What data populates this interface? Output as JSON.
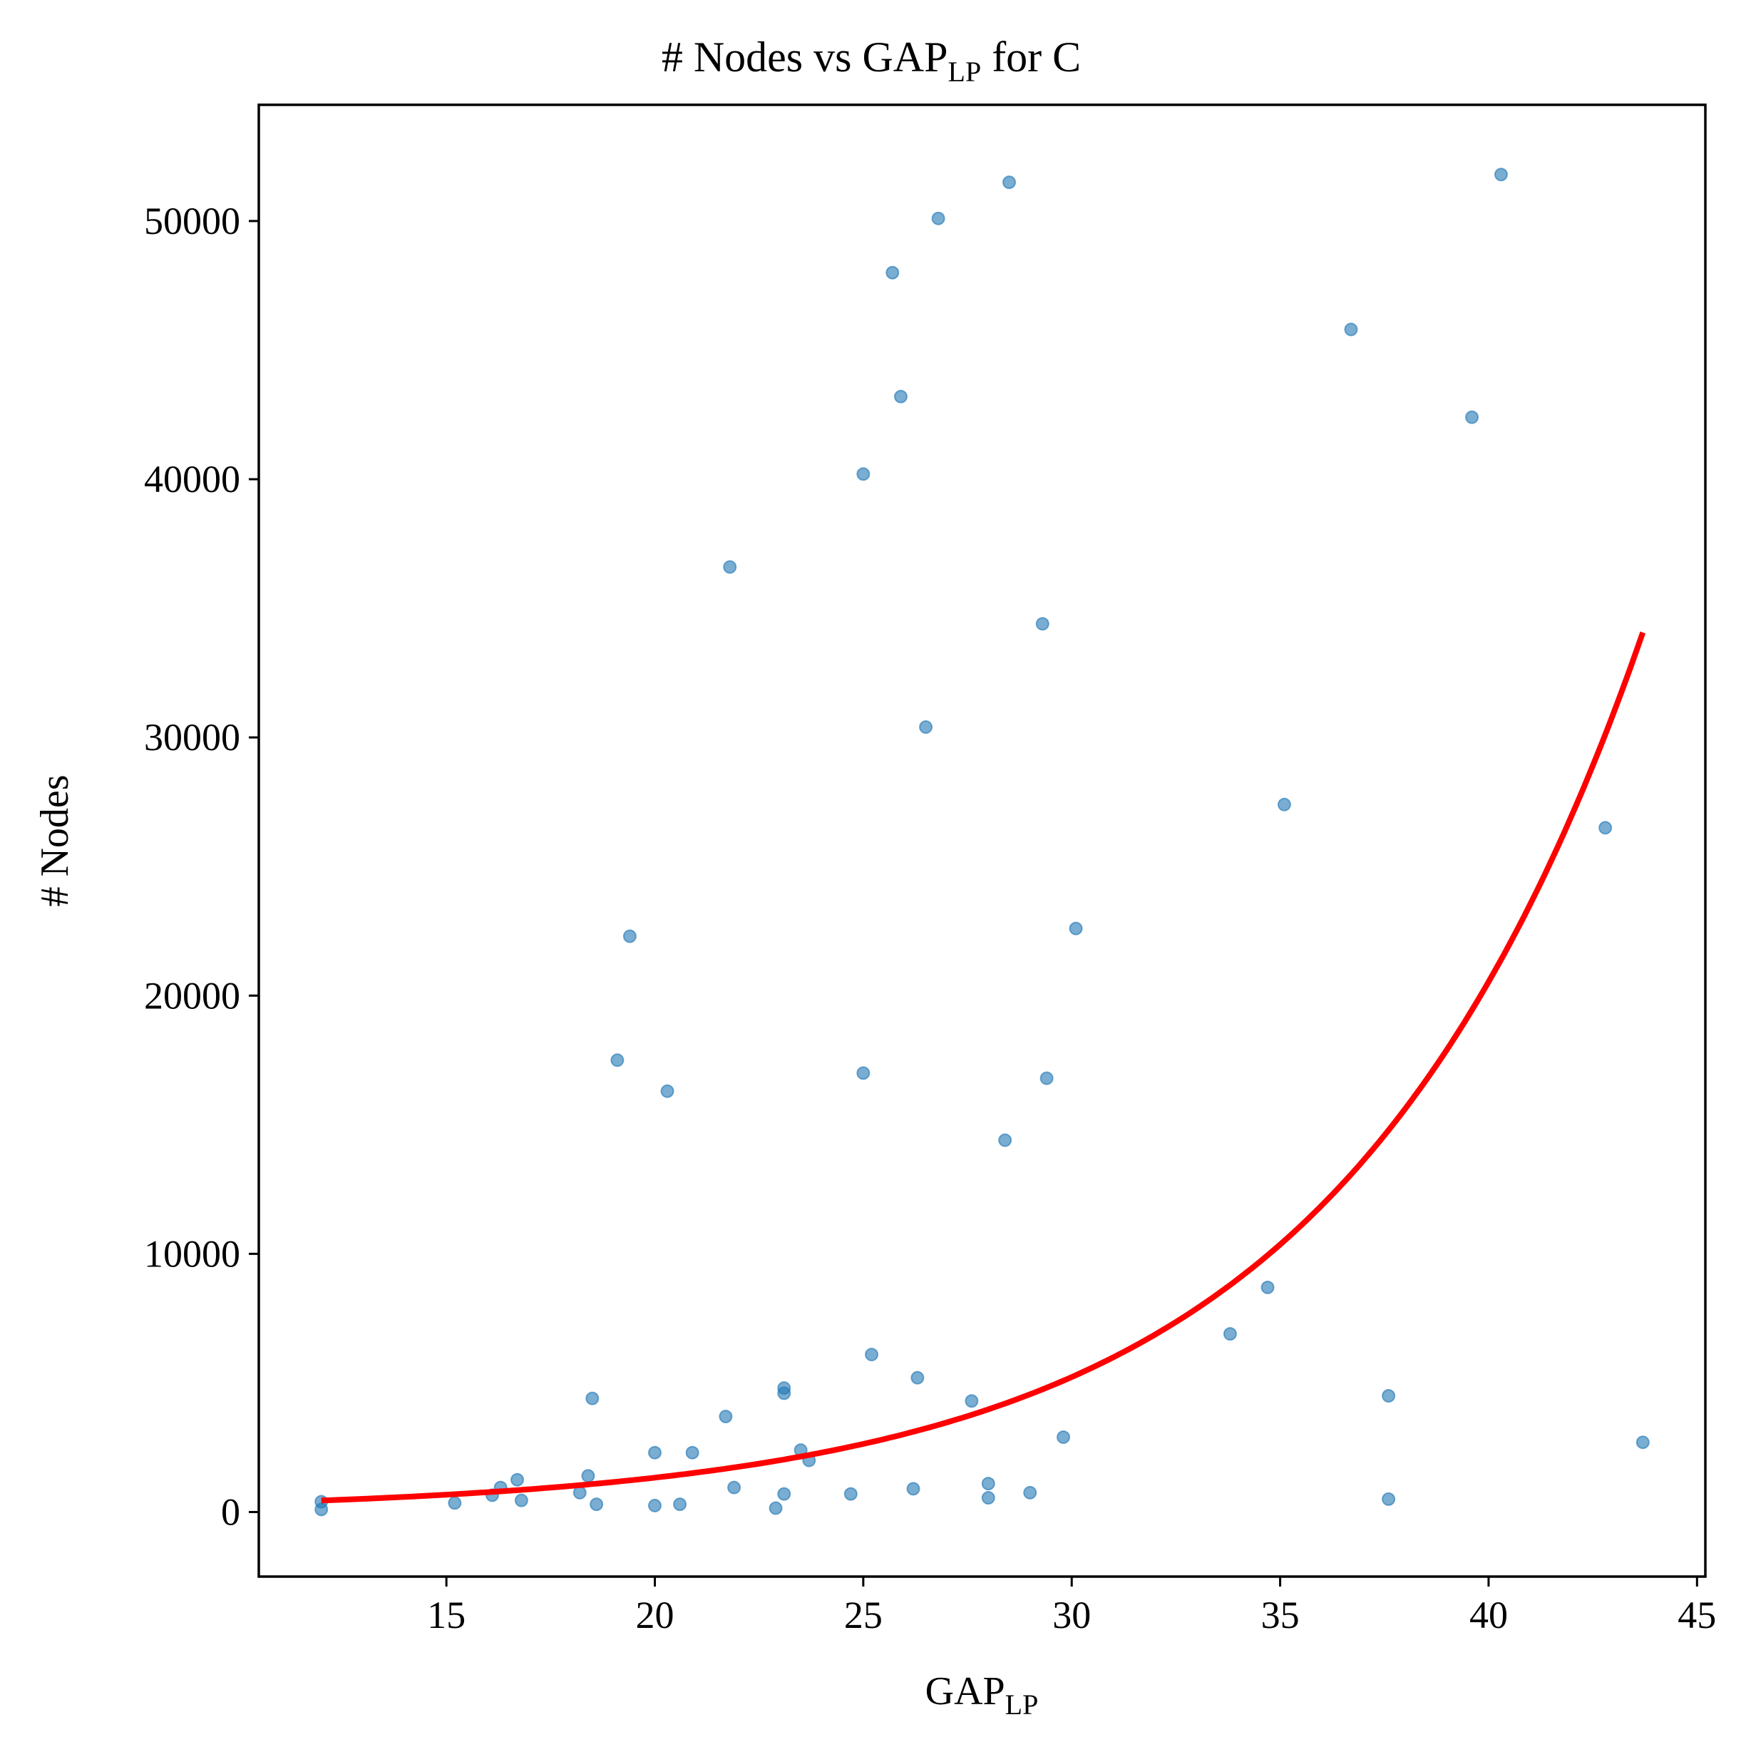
{
  "chart_data": {
    "type": "scatter",
    "title": {
      "main": "# Nodes vs GAP",
      "subscript": "LP",
      "suffix": " for C"
    },
    "xlabel": {
      "main": "GAP",
      "subscript": "LP"
    },
    "ylabel": "# Nodes",
    "xlim": [
      10.5,
      45.2
    ],
    "ylim": [
      -2500,
      54500
    ],
    "xticks": [
      15,
      20,
      25,
      30,
      35,
      40,
      45
    ],
    "yticks": [
      0,
      10000,
      20000,
      30000,
      40000,
      50000
    ],
    "grid": false,
    "legend": "none",
    "series": [
      {
        "type": "scatter",
        "color": "#1f77b4",
        "points": [
          [
            12.0,
            400
          ],
          [
            12.0,
            100
          ],
          [
            15.2,
            350
          ],
          [
            16.1,
            650
          ],
          [
            16.3,
            950
          ],
          [
            16.7,
            1250
          ],
          [
            16.8,
            450
          ],
          [
            18.2,
            750
          ],
          [
            18.4,
            1400
          ],
          [
            18.5,
            4400
          ],
          [
            18.6,
            300
          ],
          [
            19.1,
            17500
          ],
          [
            19.4,
            22300
          ],
          [
            20.0,
            2300
          ],
          [
            20.0,
            250
          ],
          [
            20.3,
            16300
          ],
          [
            20.6,
            300
          ],
          [
            20.9,
            2300
          ],
          [
            21.7,
            3700
          ],
          [
            21.8,
            36600
          ],
          [
            21.9,
            950
          ],
          [
            22.9,
            150
          ],
          [
            23.1,
            4600
          ],
          [
            23.1,
            4800
          ],
          [
            23.1,
            700
          ],
          [
            23.5,
            2400
          ],
          [
            23.7,
            2000
          ],
          [
            24.7,
            700
          ],
          [
            25.0,
            40200
          ],
          [
            25.0,
            17000
          ],
          [
            25.2,
            6100
          ],
          [
            25.7,
            48000
          ],
          [
            25.9,
            43200
          ],
          [
            26.2,
            900
          ],
          [
            26.3,
            5200
          ],
          [
            26.5,
            30400
          ],
          [
            26.8,
            50100
          ],
          [
            27.6,
            4300
          ],
          [
            28.0,
            1100
          ],
          [
            28.0,
            550
          ],
          [
            28.4,
            14400
          ],
          [
            28.5,
            51500
          ],
          [
            29.0,
            750
          ],
          [
            29.3,
            34400
          ],
          [
            29.4,
            16800
          ],
          [
            29.8,
            2900
          ],
          [
            30.1,
            22600
          ],
          [
            33.8,
            6900
          ],
          [
            34.7,
            8700
          ],
          [
            35.1,
            27400
          ],
          [
            36.7,
            45800
          ],
          [
            37.6,
            4500
          ],
          [
            37.6,
            500
          ],
          [
            39.6,
            42400
          ],
          [
            40.3,
            51800
          ],
          [
            42.8,
            26500
          ],
          [
            43.7,
            2700
          ]
        ]
      },
      {
        "type": "line",
        "color": "#ff0000",
        "name": "",
        "fit": {
          "a": 86.3,
          "b": 0.1368,
          "x_start": 12.0,
          "x_end": 43.7
        }
      }
    ]
  }
}
